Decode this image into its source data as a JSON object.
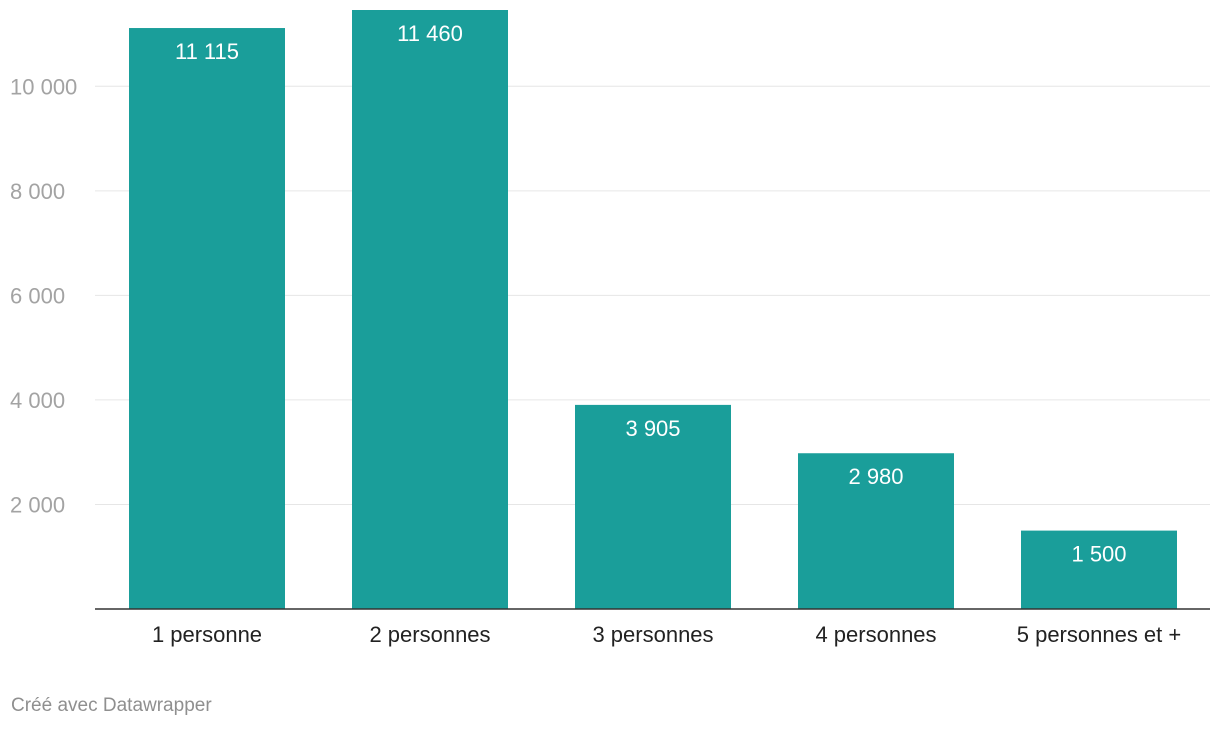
{
  "chart_data": {
    "type": "bar",
    "title": "",
    "xlabel": "",
    "ylabel": "",
    "categories": [
      "1 personne",
      "2 personnes",
      "3 personnes",
      "4 personnes",
      "5 personnes et +"
    ],
    "values": [
      11115,
      11460,
      3905,
      2980,
      1500
    ],
    "value_labels": [
      "11 115",
      "11 460",
      "3 905",
      "2 980",
      "1 500"
    ],
    "yticks": [
      2000,
      4000,
      6000,
      8000,
      10000
    ],
    "ytick_labels": [
      "2 000",
      "4 000",
      "6 000",
      "8 000",
      "10 000"
    ],
    "ylim": [
      0,
      11460
    ],
    "grid": true,
    "legend": "none",
    "bar_color": "#1a9e9a"
  },
  "footer": {
    "credit": "Créé avec Datawrapper"
  }
}
